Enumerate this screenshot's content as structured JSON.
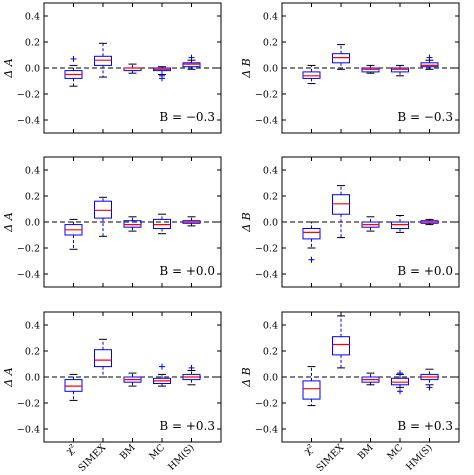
{
  "chart_data": [
    {
      "type": "box",
      "ylabel": "Δ A",
      "annotation": "B = −0.3",
      "ylim": [
        -0.5,
        0.5
      ],
      "yticks": [
        -0.4,
        -0.2,
        0.0,
        0.2,
        0.4
      ],
      "ytick_labels": [
        "−0.4",
        "−0.2",
        "0.0",
        "0.2",
        "0.4"
      ],
      "categories": [
        "χ²",
        "SIMEX",
        "BM",
        "MC",
        "HM(S)"
      ],
      "show_xticklabels": false,
      "boxes": [
        {
          "whislo": -0.14,
          "q1": -0.08,
          "med": -0.05,
          "q3": -0.02,
          "whishi": 0.02,
          "fliers": [
            0.07
          ]
        },
        {
          "whislo": -0.07,
          "q1": 0.02,
          "med": 0.06,
          "q3": 0.09,
          "whishi": 0.19,
          "fliers": []
        },
        {
          "whislo": -0.04,
          "q1": -0.02,
          "med": 0.0,
          "q3": 0.0,
          "whishi": 0.03,
          "fliers": []
        },
        {
          "whislo": -0.05,
          "q1": -0.02,
          "med": -0.01,
          "q3": 0.0,
          "whishi": 0.01,
          "fliers": [
            -0.06,
            -0.08
          ]
        },
        {
          "whislo": -0.01,
          "q1": 0.01,
          "med": 0.03,
          "q3": 0.04,
          "whishi": 0.06,
          "fliers": [
            0.08
          ]
        }
      ]
    },
    {
      "type": "box",
      "ylabel": "Δ B",
      "annotation": "B = −0.3",
      "ylim": [
        -0.5,
        0.5
      ],
      "yticks": [
        -0.4,
        -0.2,
        0.0,
        0.2,
        0.4
      ],
      "ytick_labels": [
        "−0.4",
        "−0.2",
        "0.0",
        "0.2",
        "0.4"
      ],
      "categories": [
        "χ²",
        "SIMEX",
        "BM",
        "MC",
        "HM(S)"
      ],
      "show_xticklabels": false,
      "boxes": [
        {
          "whislo": -0.12,
          "q1": -0.08,
          "med": -0.06,
          "q3": -0.03,
          "whishi": 0.02,
          "fliers": []
        },
        {
          "whislo": -0.01,
          "q1": 0.04,
          "med": 0.08,
          "q3": 0.11,
          "whishi": 0.18,
          "fliers": []
        },
        {
          "whislo": -0.04,
          "q1": -0.03,
          "med": -0.01,
          "q3": 0.0,
          "whishi": 0.02,
          "fliers": []
        },
        {
          "whislo": -0.06,
          "q1": -0.03,
          "med": -0.01,
          "q3": 0.0,
          "whishi": 0.02,
          "fliers": []
        },
        {
          "whislo": -0.01,
          "q1": 0.01,
          "med": 0.02,
          "q3": 0.04,
          "whishi": 0.06,
          "fliers": [
            0.08
          ]
        }
      ]
    },
    {
      "type": "box",
      "ylabel": "Δ A",
      "annotation": "B = +0.0",
      "ylim": [
        -0.5,
        0.5
      ],
      "yticks": [
        -0.4,
        -0.2,
        0.0,
        0.2,
        0.4
      ],
      "ytick_labels": [
        "−0.4",
        "−0.2",
        "0.0",
        "0.2",
        "0.4"
      ],
      "categories": [
        "χ²",
        "SIMEX",
        "BM",
        "MC",
        "HM(S)"
      ],
      "show_xticklabels": false,
      "boxes": [
        {
          "whislo": -0.21,
          "q1": -0.1,
          "med": -0.06,
          "q3": -0.02,
          "whishi": 0.02,
          "fliers": []
        },
        {
          "whislo": -0.11,
          "q1": 0.03,
          "med": 0.09,
          "q3": 0.16,
          "whishi": 0.19,
          "fliers": []
        },
        {
          "whislo": -0.07,
          "q1": -0.04,
          "med": -0.02,
          "q3": 0.01,
          "whishi": 0.04,
          "fliers": []
        },
        {
          "whislo": -0.09,
          "q1": -0.05,
          "med": -0.02,
          "q3": 0.02,
          "whishi": 0.06,
          "fliers": []
        },
        {
          "whislo": -0.03,
          "q1": -0.01,
          "med": 0.0,
          "q3": 0.01,
          "whishi": 0.04,
          "fliers": []
        }
      ]
    },
    {
      "type": "box",
      "ylabel": "Δ B",
      "annotation": "B = +0.0",
      "ylim": [
        -0.5,
        0.5
      ],
      "yticks": [
        -0.4,
        -0.2,
        0.0,
        0.2,
        0.4
      ],
      "ytick_labels": [
        "−0.4",
        "−0.2",
        "0.0",
        "0.2",
        "0.4"
      ],
      "categories": [
        "χ²",
        "SIMEX",
        "BM",
        "MC",
        "HM(S)"
      ],
      "show_xticklabels": false,
      "boxes": [
        {
          "whislo": -0.2,
          "q1": -0.13,
          "med": -0.08,
          "q3": -0.05,
          "whishi": 0.0,
          "fliers": [
            -0.29
          ]
        },
        {
          "whislo": -0.12,
          "q1": 0.06,
          "med": 0.14,
          "q3": 0.21,
          "whishi": 0.28,
          "fliers": []
        },
        {
          "whislo": -0.07,
          "q1": -0.04,
          "med": -0.02,
          "q3": 0.0,
          "whishi": 0.04,
          "fliers": []
        },
        {
          "whislo": -0.08,
          "q1": -0.05,
          "med": -0.02,
          "q3": 0.0,
          "whishi": 0.05,
          "fliers": []
        },
        {
          "whislo": -0.02,
          "q1": -0.01,
          "med": 0.0,
          "q3": 0.01,
          "whishi": 0.02,
          "fliers": []
        }
      ]
    },
    {
      "type": "box",
      "ylabel": "Δ A",
      "annotation": "B = +0.3",
      "ylim": [
        -0.5,
        0.5
      ],
      "yticks": [
        -0.4,
        -0.2,
        0.0,
        0.2,
        0.4
      ],
      "ytick_labels": [
        "−0.4",
        "−0.2",
        "0.0",
        "0.2",
        "0.4"
      ],
      "categories": [
        "χ²",
        "SIMEX",
        "BM",
        "MC",
        "HM(S)"
      ],
      "show_xticklabels": true,
      "boxes": [
        {
          "whislo": -0.18,
          "q1": -0.11,
          "med": -0.07,
          "q3": -0.02,
          "whishi": 0.02,
          "fliers": []
        },
        {
          "whislo": 0.0,
          "q1": 0.08,
          "med": 0.13,
          "q3": 0.21,
          "whishi": 0.29,
          "fliers": []
        },
        {
          "whislo": -0.07,
          "q1": -0.04,
          "med": -0.02,
          "q3": 0.0,
          "whishi": 0.03,
          "fliers": []
        },
        {
          "whislo": -0.07,
          "q1": -0.05,
          "med": -0.03,
          "q3": -0.01,
          "whishi": 0.02,
          "fliers": [
            0.08
          ]
        },
        {
          "whislo": -0.06,
          "q1": -0.02,
          "med": 0.0,
          "q3": 0.02,
          "whishi": 0.05,
          "fliers": [
            0.07
          ]
        }
      ]
    },
    {
      "type": "box",
      "ylabel": "Δ B",
      "annotation": "B = +0.3",
      "ylim": [
        -0.5,
        0.5
      ],
      "yticks": [
        -0.4,
        -0.2,
        0.0,
        0.2,
        0.4
      ],
      "ytick_labels": [
        "−0.4",
        "−0.2",
        "0.0",
        "0.2",
        "0.4"
      ],
      "categories": [
        "χ²",
        "SIMEX",
        "BM",
        "MC",
        "HM(S)"
      ],
      "show_xticklabels": true,
      "boxes": [
        {
          "whislo": -0.22,
          "q1": -0.17,
          "med": -0.09,
          "q3": -0.03,
          "whishi": 0.08,
          "fliers": []
        },
        {
          "whislo": 0.07,
          "q1": 0.17,
          "med": 0.25,
          "q3": 0.31,
          "whishi": 0.47,
          "fliers": []
        },
        {
          "whislo": -0.06,
          "q1": -0.04,
          "med": -0.02,
          "q3": 0.0,
          "whishi": 0.03,
          "fliers": []
        },
        {
          "whislo": -0.08,
          "q1": -0.06,
          "med": -0.04,
          "q3": -0.01,
          "whishi": 0.02,
          "fliers": [
            0.03,
            -0.11
          ]
        },
        {
          "whislo": -0.06,
          "q1": -0.02,
          "med": 0.0,
          "q3": 0.02,
          "whishi": 0.06,
          "fliers": [
            -0.08
          ]
        }
      ]
    }
  ],
  "colors": {
    "box": "#0000ff",
    "median": "#ff0000",
    "zero_line": "#000000"
  }
}
